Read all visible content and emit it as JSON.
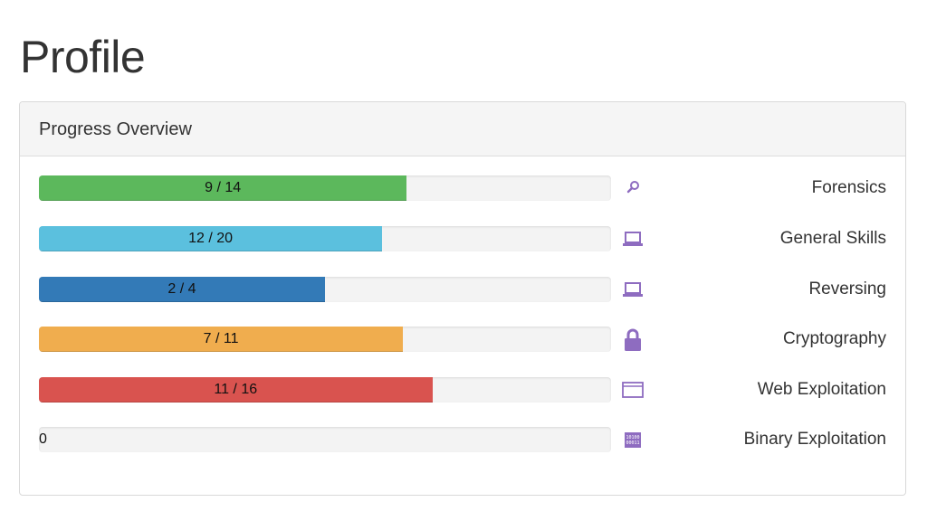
{
  "page": {
    "title": "Profile"
  },
  "panel": {
    "heading": "Progress Overview"
  },
  "colors": {
    "accent_icon": "#8e6cc0",
    "track": "#f3f3f3"
  },
  "categories": [
    {
      "name": "Forensics",
      "label": "9 / 14",
      "solved": 9,
      "total": 14,
      "color": "#5cb85c",
      "icon": "magnifier-icon"
    },
    {
      "name": "General Skills",
      "label": "12 / 20",
      "solved": 12,
      "total": 20,
      "color": "#5bc0de",
      "icon": "laptop-icon"
    },
    {
      "name": "Reversing",
      "label": "2 / 4",
      "solved": 2,
      "total": 4,
      "color": "#337ab7",
      "icon": "laptop-icon"
    },
    {
      "name": "Cryptography",
      "label": "7 / 11",
      "solved": 7,
      "total": 11,
      "color": "#f0ad4e",
      "icon": "lock-icon"
    },
    {
      "name": "Web Exploitation",
      "label": "11 / 16",
      "solved": 11,
      "total": 16,
      "color": "#d9534f",
      "icon": "browser-window-icon"
    },
    {
      "name": "Binary Exploitation",
      "label": "0",
      "solved": 0,
      "total": 0,
      "color": "#f3f3f3",
      "icon": "binary-icon"
    }
  ]
}
